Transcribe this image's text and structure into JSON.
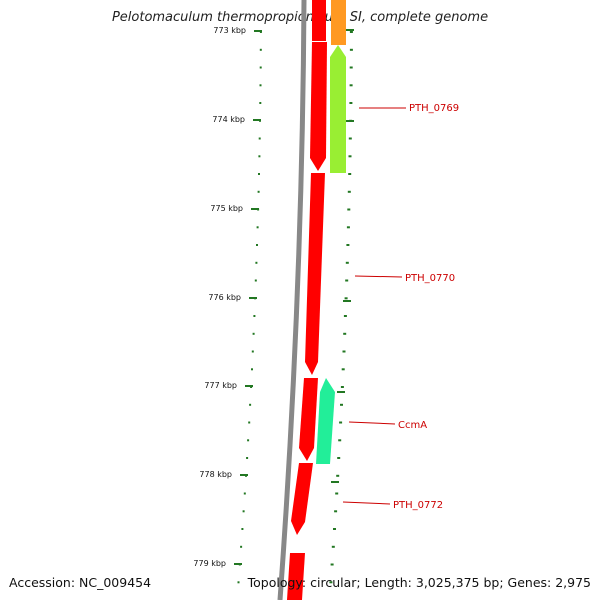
{
  "header": {
    "title": "Pelotomaculum thermopropionicum SI, complete genome"
  },
  "footer": {
    "accession": "Accession: NC_009454",
    "summary": "Topology: circular; Length: 3,025,375 bp; Genes: 2,975"
  },
  "ruler": {
    "unit": "kbp",
    "ticks": [
      {
        "kbp": 773,
        "label": "773 kbp"
      },
      {
        "kbp": 774,
        "label": "774 kbp"
      },
      {
        "kbp": 775,
        "label": "775 kbp"
      },
      {
        "kbp": 776,
        "label": "776 kbp"
      },
      {
        "kbp": 777,
        "label": "777 kbp"
      },
      {
        "kbp": 778,
        "label": "778 kbp"
      },
      {
        "kbp": 779,
        "label": "779 kbp"
      }
    ]
  },
  "genes": [
    {
      "name": "PTH_0769",
      "label": "PTH_0769",
      "color": "#99ee33",
      "strand": "minus"
    },
    {
      "name": "PTH_0770",
      "label": "PTH_0770",
      "color": "#ff0000",
      "strand": "plus"
    },
    {
      "name": "CcmA",
      "label": "CcmA",
      "color": "#22ee99",
      "strand": "minus"
    },
    {
      "name": "PTH_0772",
      "label": "PTH_0772",
      "color": "#ff0000",
      "strand": "plus"
    }
  ],
  "colors": {
    "backbone": "#888888",
    "plus_strand_gene": "#ff0000",
    "neighbor_gene": "#ff9922",
    "tick": "#227722",
    "label": "#cc0000"
  }
}
